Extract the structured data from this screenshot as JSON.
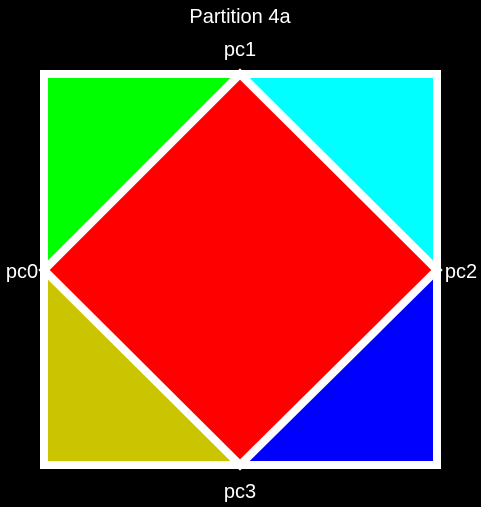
{
  "title": "Partition 4a",
  "points": {
    "left": "pc0",
    "top": "pc1",
    "right": "pc2",
    "bottom": "pc3"
  },
  "regions": {
    "top_left": {
      "color": "#00ff00"
    },
    "top_right": {
      "color": "#00ffff"
    },
    "bottom_left": {
      "color": "#cbc400"
    },
    "bottom_right": {
      "color": "#0000ff"
    },
    "center": {
      "color": "#ff0000"
    }
  },
  "border_color": "#ffffff",
  "background_color": "#000000"
}
